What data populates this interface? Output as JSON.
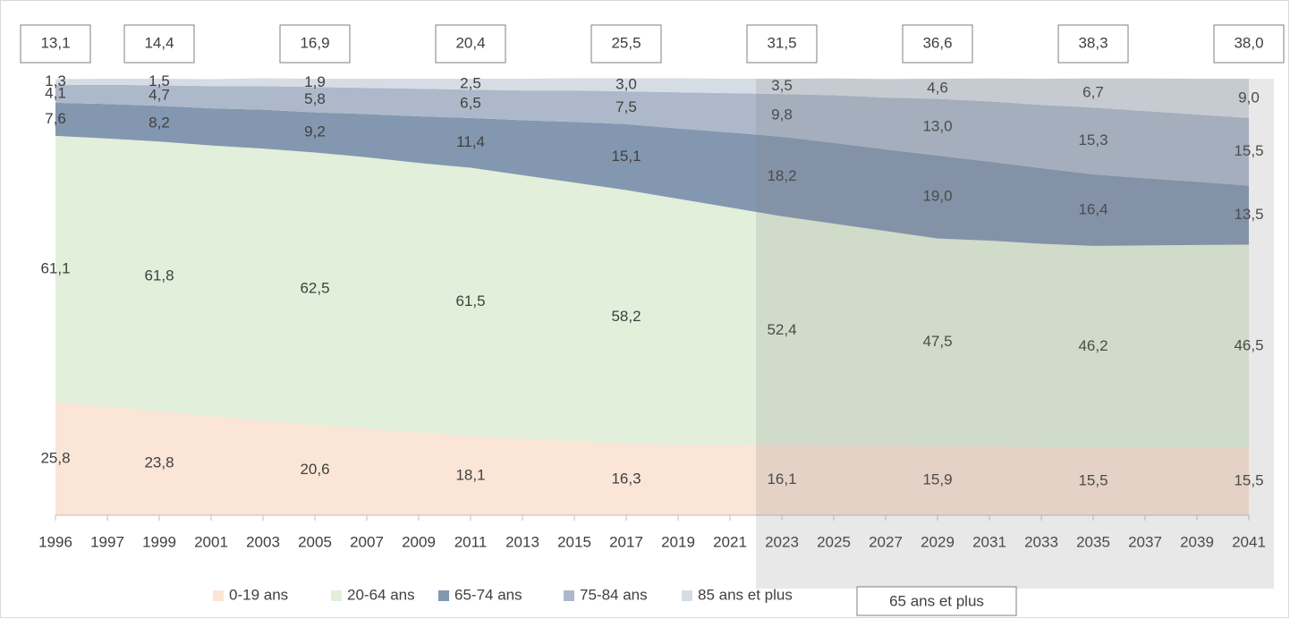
{
  "chart_data": {
    "type": "stacked_area",
    "categories": [
      "1996",
      "1997",
      "1999",
      "2001",
      "2003",
      "2005",
      "2007",
      "2009",
      "2011",
      "2013",
      "2015",
      "2017",
      "2019",
      "2021",
      "2023",
      "2025",
      "2027",
      "2029",
      "2031",
      "2033",
      "2035",
      "2037",
      "2039",
      "2041"
    ],
    "ylim": [
      0,
      100
    ],
    "legend": "bottom",
    "series": [
      {
        "name": "0-19 ans",
        "color": "#fbe5d6",
        "values": [
          25.8,
          24.8,
          23.8,
          22.7,
          21.7,
          20.6,
          19.8,
          18.9,
          18.1,
          17.5,
          16.9,
          16.3,
          16.2,
          16.2,
          16.1,
          16.0,
          16.0,
          15.9,
          15.8,
          15.6,
          15.5,
          15.5,
          15.5,
          15.5
        ],
        "value_labels": [
          "25,8",
          null,
          "23,8",
          null,
          null,
          "20,6",
          null,
          null,
          "18,1",
          null,
          null,
          "16,3",
          null,
          null,
          "16,1",
          null,
          null,
          "15,9",
          null,
          null,
          "15,5",
          null,
          null,
          "15,5"
        ]
      },
      {
        "name": "20-64 ans",
        "color": "#e2efda",
        "values": [
          61.1,
          61.5,
          61.8,
          62.0,
          62.3,
          62.5,
          62.2,
          61.8,
          61.5,
          60.4,
          59.3,
          58.2,
          56.3,
          54.3,
          52.4,
          50.8,
          49.1,
          47.5,
          47.1,
          46.6,
          46.2,
          46.3,
          46.4,
          46.5
        ],
        "value_labels": [
          "61,1",
          null,
          "61,8",
          null,
          null,
          "62,5",
          null,
          null,
          "61,5",
          null,
          null,
          "58,2",
          null,
          null,
          "52,4",
          null,
          null,
          "47,5",
          null,
          null,
          "46,2",
          null,
          null,
          "46,5"
        ]
      },
      {
        "name": "65-74 ans",
        "color": "#8497b0",
        "values": [
          7.6,
          7.9,
          8.2,
          8.5,
          8.9,
          9.2,
          9.9,
          10.7,
          11.4,
          12.6,
          13.9,
          15.1,
          16.1,
          17.2,
          18.2,
          18.5,
          18.7,
          19.0,
          18.1,
          17.3,
          16.4,
          15.4,
          14.5,
          13.5
        ],
        "value_labels": [
          "7,6",
          null,
          "8,2",
          null,
          null,
          "9,2",
          null,
          null,
          "11,4",
          null,
          null,
          "15,1",
          null,
          null,
          "18,2",
          null,
          null,
          "19,0",
          null,
          null,
          "16,4",
          null,
          null,
          "13,5"
        ]
      },
      {
        "name": "75-84 ans",
        "color": "#adb9ca",
        "values": [
          4.1,
          4.4,
          4.7,
          5.1,
          5.4,
          5.8,
          6.0,
          6.3,
          6.5,
          6.8,
          7.2,
          7.5,
          8.3,
          9.0,
          9.8,
          10.9,
          11.9,
          13.0,
          13.8,
          14.5,
          15.3,
          15.4,
          15.4,
          15.5
        ],
        "value_labels": [
          "4,1",
          null,
          "4,7",
          null,
          null,
          "5,8",
          null,
          null,
          "6,5",
          null,
          null,
          "7,5",
          null,
          null,
          "9,8",
          null,
          null,
          "13,0",
          null,
          null,
          "15,3",
          null,
          null,
          "15,5"
        ]
      },
      {
        "name": "85 ans et plus",
        "color": "#d6dce4",
        "values": [
          1.3,
          1.4,
          1.5,
          1.6,
          1.8,
          1.9,
          2.1,
          2.3,
          2.5,
          2.7,
          2.8,
          3.0,
          3.2,
          3.3,
          3.5,
          3.9,
          4.2,
          4.6,
          5.3,
          6.0,
          6.7,
          7.5,
          8.2,
          9.0
        ],
        "value_labels": [
          "1,3",
          null,
          "1,5",
          null,
          null,
          "1,9",
          null,
          null,
          "2,5",
          null,
          null,
          "3,0",
          null,
          null,
          "3,5",
          null,
          null,
          "4,6",
          null,
          null,
          "6,7",
          null,
          null,
          "9,0"
        ]
      }
    ],
    "totals": {
      "name": "65 ans et plus",
      "values": [
        13.1,
        13.7,
        14.4,
        15.2,
        16.1,
        16.9,
        18.0,
        19.3,
        20.4,
        22.1,
        23.9,
        25.5,
        27.6,
        29.5,
        31.5,
        33.3,
        34.8,
        36.6,
        37.2,
        37.8,
        38.3,
        38.3,
        38.1,
        38.0
      ],
      "value_labels": [
        "13,1",
        null,
        "14,4",
        null,
        null,
        "16,9",
        null,
        null,
        "20,4",
        null,
        null,
        "25,5",
        null,
        null,
        "31,5",
        null,
        null,
        "36,6",
        null,
        null,
        "38,3",
        null,
        null,
        "38,0"
      ]
    }
  }
}
